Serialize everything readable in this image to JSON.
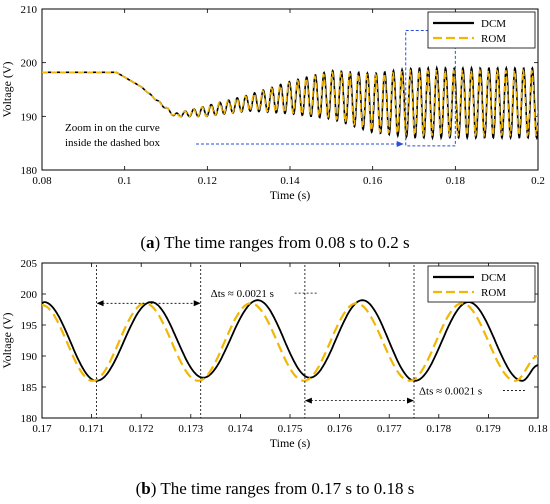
{
  "chart_data": [
    {
      "type": "line",
      "caption_label": "a",
      "caption_text": " The time ranges from 0.08 s to 0.2 s",
      "xlabel": "Time (s)",
      "ylabel": "Voltage (V)",
      "xlim": [
        0.08,
        0.2
      ],
      "ylim": [
        180,
        210
      ],
      "xticks": [
        "0.08",
        "0.1",
        "0.12",
        "0.14",
        "0.16",
        "0.18",
        "0.2"
      ],
      "yticks": [
        "180",
        "190",
        "200",
        "210"
      ],
      "legend_position": "top-right",
      "series": [
        {
          "name": "DCM",
          "color": "#000000",
          "style": "solid",
          "x": [
            0.08,
            0.098,
            0.104,
            0.112,
            0.12,
            0.13,
            0.14,
            0.15,
            0.16,
            0.17,
            0.18,
            0.19,
            0.2
          ],
          "y": [
            198.2,
            198.2,
            195.5,
            190.2,
            191.0,
            192.5,
            193.5,
            194.0,
            192.5,
            192.5,
            192.5,
            192.5,
            192.5
          ],
          "osc_amplitude": [
            0,
            0,
            0,
            0.3,
            1.0,
            1.5,
            3.0,
            4.5,
            5.5,
            6.5,
            6.5,
            6.5,
            6.5
          ]
        },
        {
          "name": "ROM",
          "color": "#f2b705",
          "style": "dashed",
          "x": [
            0.08,
            0.098,
            0.104,
            0.112,
            0.12,
            0.13,
            0.14,
            0.15,
            0.16,
            0.17,
            0.18,
            0.19,
            0.2
          ],
          "y": [
            198.2,
            198.2,
            195.5,
            190.2,
            191.0,
            192.5,
            193.5,
            194.0,
            192.5,
            192.5,
            192.5,
            192.5,
            192.5
          ],
          "osc_amplitude": [
            0,
            0,
            0,
            0.3,
            1.0,
            1.4,
            2.8,
            4.2,
            5.2,
            6.0,
            6.0,
            6.0,
            6.0
          ]
        }
      ],
      "oscillation_period_s": 0.0021,
      "zoom_box": {
        "x": [
          0.168,
          0.18
        ],
        "y": [
          184.5,
          206
        ]
      },
      "annotation": [
        "Zoom in on the curve",
        "inside the dashed box"
      ],
      "annotation_arrow_to": {
        "x": 0.168,
        "y": 185.5
      }
    },
    {
      "type": "line",
      "caption_label": "b",
      "caption_text": " The time ranges from 0.17 s to 0.18 s",
      "xlabel": "Time (s)",
      "ylabel": "Voltage (V)",
      "xlim": [
        0.17,
        0.18
      ],
      "ylim": [
        180,
        205
      ],
      "xticks": [
        "0.17",
        "0.171",
        "0.172",
        "0.173",
        "0.174",
        "0.175",
        "0.176",
        "0.177",
        "0.178",
        "0.179",
        "0.18"
      ],
      "yticks": [
        "180",
        "185",
        "190",
        "195",
        "200",
        "205"
      ],
      "legend_position": "top-right",
      "series": [
        {
          "name": "DCM",
          "color": "#000000",
          "style": "solid",
          "minima_x": [
            0.1711,
            0.17325,
            0.1754,
            0.17752,
            0.17968
          ],
          "minima_y": [
            186.0,
            186.5,
            186.5,
            186.0,
            186.0
          ],
          "maxima_x": [
            0.1722,
            0.17435,
            0.17646,
            0.1786
          ],
          "maxima_y": [
            198.7,
            199.0,
            199.0,
            198.7
          ],
          "end_points": [
            [
              0.17,
              198.5
            ],
            [
              0.18,
              188.5
            ]
          ]
        },
        {
          "name": "ROM",
          "color": "#f2b705",
          "style": "dashed",
          "minima_x": [
            0.17102,
            0.17315,
            0.17528,
            0.17741,
            0.17954
          ],
          "minima_y": [
            186.0,
            186.0,
            186.0,
            186.0,
            186.0
          ],
          "maxima_x": [
            0.17208,
            0.17421,
            0.17634,
            0.17847
          ],
          "maxima_y": [
            198.5,
            198.5,
            198.5,
            198.5
          ],
          "end_points": [
            [
              0.17,
              198.2
            ],
            [
              0.18,
              190.0
            ]
          ]
        }
      ],
      "vlines": [
        0.1711,
        0.1732,
        0.1753,
        0.1775
      ],
      "intervals": [
        {
          "x1": 0.1711,
          "x2": 0.1732,
          "y": 198.5
        },
        {
          "x1": 0.1753,
          "x2": 0.1775,
          "y": 182.8
        }
      ],
      "interval_labels": [
        {
          "text": "Δts ≈ 0.0021 s",
          "x": 0.1734,
          "y": 199.5
        },
        {
          "text": "Δts ≈ 0.0021 s",
          "x": 0.1776,
          "y": 183.8
        }
      ]
    }
  ]
}
